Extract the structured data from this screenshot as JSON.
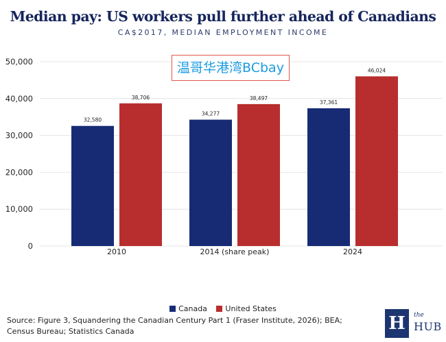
{
  "chart_data": {
    "type": "bar",
    "title": "Median pay: US workers pull further ahead of Canadians",
    "subtitle": "CA$2017, MEDIAN EMPLOYMENT INCOME",
    "categories": [
      "2010",
      "2014 (share peak)",
      "2024"
    ],
    "series": [
      {
        "name": "Canada",
        "color": "#172b75",
        "values": [
          32580,
          34277,
          37361
        ],
        "labels": [
          "32,580",
          "34,277",
          "37,361"
        ]
      },
      {
        "name": "United States",
        "color": "#b82e2e",
        "values": [
          38706,
          38497,
          46024
        ],
        "labels": [
          "38,706",
          "38,497",
          "46,024"
        ]
      }
    ],
    "ylim": [
      0,
      50000
    ],
    "yticks": [
      0,
      10000,
      20000,
      30000,
      40000,
      50000
    ],
    "ytick_labels": [
      "0",
      "10,000",
      "20,000",
      "30,000",
      "40,000",
      "50,000"
    ],
    "grid": true,
    "legend_placement": "bottom-center"
  },
  "watermark": "温哥华港湾BCbay",
  "source": "Source: Figure 3, Squandering the Canadian Century Part 1 (Fraser Institute, 2026); BEA; Census Bureau; Statistics Canada",
  "logo": {
    "mark": "H",
    "the": "the",
    "name": "HUB"
  }
}
